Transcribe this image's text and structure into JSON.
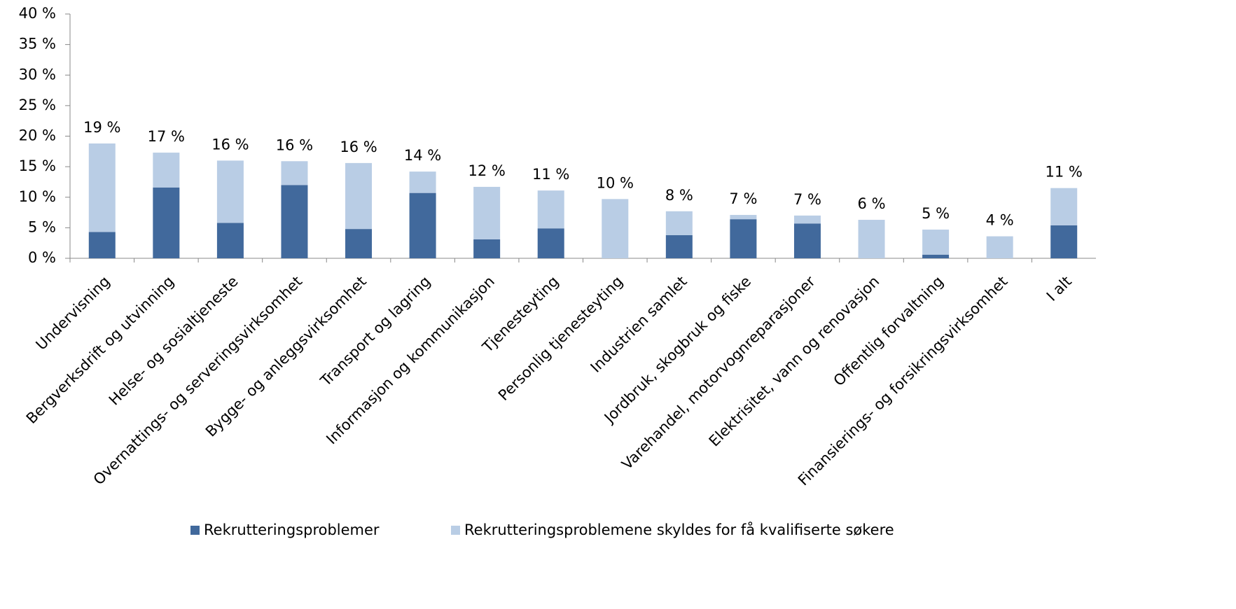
{
  "chart_data": {
    "type": "stacked-bar",
    "categories": [
      "Undervisning",
      "Bergverksdrift og utvinning",
      "Helse- og sosialtjeneste",
      "Overnattings- og serveringsvirksomhet",
      "Bygge- og anleggsvirksomhet",
      "Transport og lagring",
      "Informasjon og kommunikasjon",
      "Tjenesteyting",
      "Personlig tjenesteyting",
      "Industrien samlet",
      "Jordbruk, skogbruk og fiske",
      "Varehandel, motorvognreparasjoner",
      "Elektrisitet, vann og renovasjon",
      "Offentlig forvaltning",
      "Finansierings- og forsikringsvirksomhet",
      "I alt"
    ],
    "series": [
      {
        "name": "Rekrutteringsproblemer",
        "color": "#41699c",
        "values": [
          4.3,
          11.6,
          5.8,
          12.0,
          4.8,
          10.7,
          3.1,
          4.9,
          0,
          3.8,
          6.4,
          5.7,
          0,
          0.6,
          0,
          5.4
        ]
      },
      {
        "name": "Rekrutteringsproblemene skyldes for få kvalifiserte søkere",
        "color": "#b9cde5",
        "values": [
          14.5,
          5.7,
          10.2,
          3.9,
          10.8,
          3.5,
          8.6,
          6.2,
          9.7,
          3.9,
          0.7,
          1.3,
          6.3,
          4.1,
          3.6,
          6.1
        ]
      }
    ],
    "total_labels": [
      "19 %",
      "17 %",
      "16 %",
      "16 %",
      "16 %",
      "14 %",
      "12 %",
      "11 %",
      "10 %",
      "8 %",
      "7 %",
      "7 %",
      "6 %",
      "5 %",
      "4 %",
      "11 %"
    ],
    "ylim": [
      0,
      40
    ],
    "yticks": [
      {
        "value": 0,
        "label": "0 %"
      },
      {
        "value": 5,
        "label": "5 %"
      },
      {
        "value": 10,
        "label": "10 %"
      },
      {
        "value": 15,
        "label": "15 %"
      },
      {
        "value": 20,
        "label": "20 %"
      },
      {
        "value": 25,
        "label": "25 %"
      },
      {
        "value": 30,
        "label": "30 %"
      },
      {
        "value": 35,
        "label": "35 %"
      },
      {
        "value": 40,
        "label": "40 %"
      }
    ],
    "legend": "bottom",
    "grid": false
  }
}
